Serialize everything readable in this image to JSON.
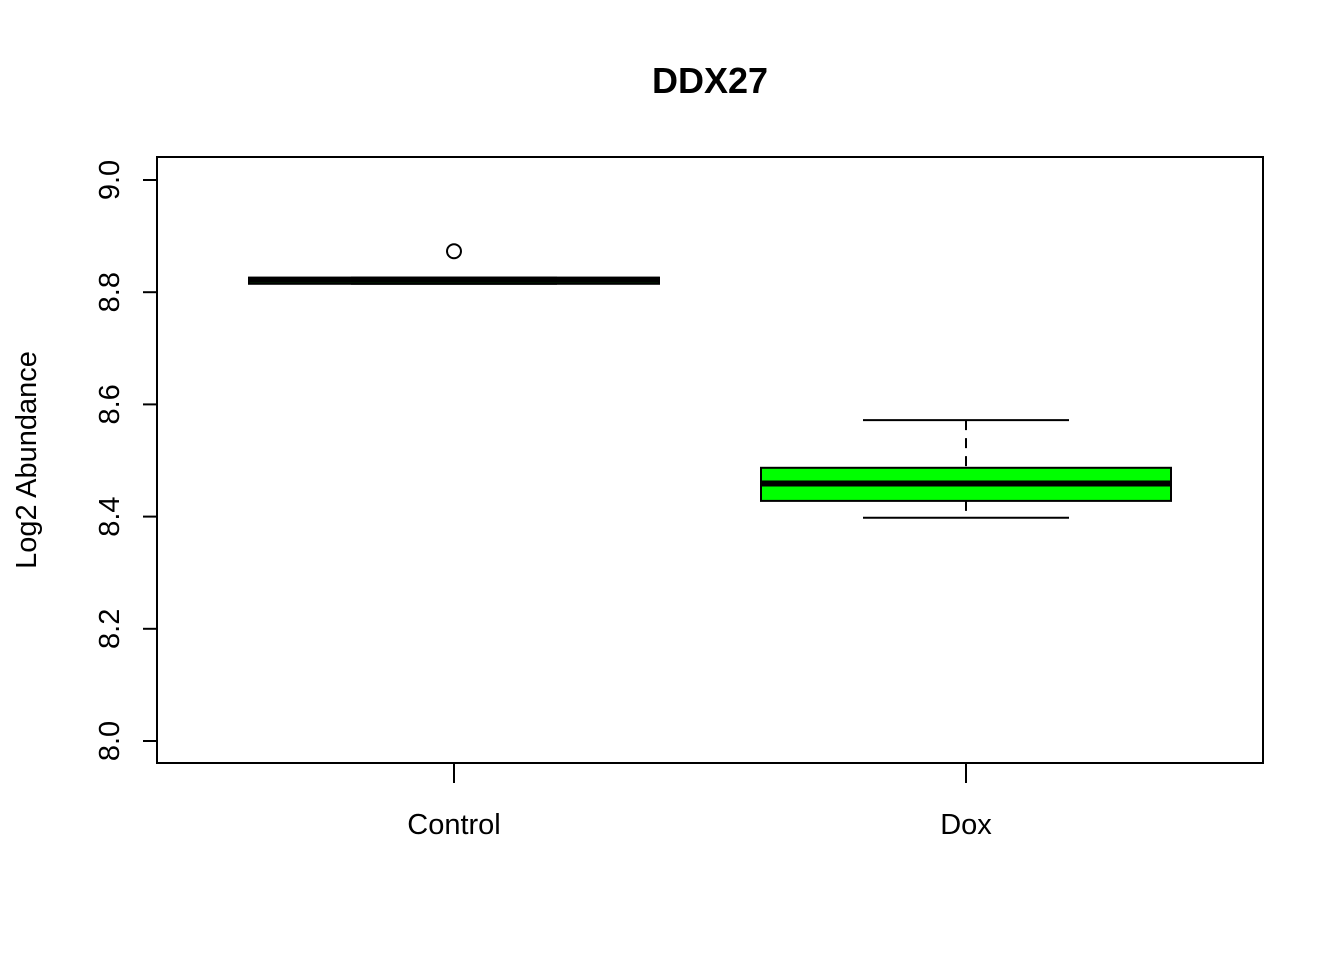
{
  "chart_data": {
    "type": "boxplot",
    "title": "DDX27",
    "xlabel": "",
    "ylabel": "Log2 Abundance",
    "ylim": [
      8.0,
      9.0
    ],
    "yticks": [
      "8.0",
      "8.2",
      "8.4",
      "8.6",
      "8.8",
      "9.0"
    ],
    "categories": [
      "Control",
      "Dox"
    ],
    "fill_color": "#00ff00",
    "grid": false,
    "legend": "none",
    "boxes": [
      {
        "category": "Control",
        "whisker_low": 8.815,
        "q1": 8.815,
        "median": 8.822,
        "q3": 8.826,
        "whisker_high": 8.826,
        "outliers": [
          8.873
        ]
      },
      {
        "category": "Dox",
        "whisker_low": 8.398,
        "q1": 8.428,
        "median": 8.459,
        "q3": 8.487,
        "whisker_high": 8.572,
        "outliers": []
      }
    ]
  }
}
